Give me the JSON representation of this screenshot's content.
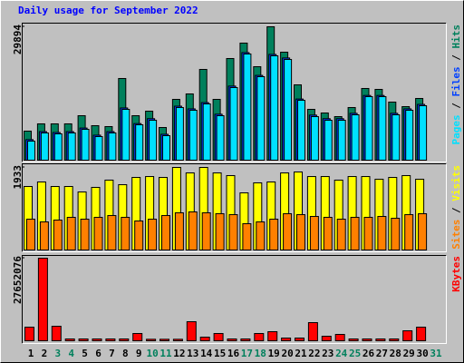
{
  "chart_data": [
    {
      "type": "bar",
      "title": "Daily usage for September 2022",
      "ylim": [
        0,
        29894
      ],
      "yticks": [
        29894
      ],
      "legend_separator": " / ",
      "series": [
        {
          "name": "Hits",
          "color": "#00805c",
          "values": [
            6508,
            8135,
            8135,
            8135,
            9965,
            7728,
            7524,
            18303,
            9965,
            10982,
            7321,
            13625,
            14845,
            20336,
            13625,
            22777,
            26233,
            20946,
            29894,
            24200,
            16879,
            11388,
            10575,
            9761,
            11795,
            16066,
            15862,
            13015,
            11998,
            13829,
            null
          ]
        },
        {
          "name": "Files",
          "color": "#0040ff",
          "values": [
            4600,
            6400,
            6200,
            6400,
            7200,
            5600,
            6400,
            11700,
            8200,
            9300,
            5800,
            12100,
            11500,
            12900,
            10300,
            16600,
            24100,
            19000,
            23700,
            22900,
            13700,
            10100,
            9300,
            9300,
            10500,
            14500,
            14500,
            10500,
            11500,
            12500,
            null
          ]
        },
        {
          "name": "Pages",
          "color": "#00e0ff",
          "values": [
            4271,
            6101,
            5898,
            6101,
            6914,
            5287,
            6101,
            11388,
            7931,
            8948,
            5491,
            11795,
            11185,
            12608,
            9965,
            16269,
            23793,
            18709,
            23386,
            22573,
            13422,
            9761,
            8948,
            8948,
            10168,
            14235,
            14235,
            10168,
            11185,
            12201,
            null
          ]
        }
      ]
    },
    {
      "type": "bar",
      "ylim": [
        0,
        1933
      ],
      "yticks": [
        1933
      ],
      "legend_separator": " / ",
      "series": [
        {
          "name": "Visits",
          "color": "#ffff00",
          "values": [
            1487,
            1593,
            1487,
            1487,
            1359,
            1466,
            1636,
            1529,
            1699,
            1720,
            1699,
            1933,
            1805,
            1933,
            1805,
            1742,
            1338,
            1572,
            1593,
            1805,
            1827,
            1720,
            1720,
            1636,
            1720,
            1720,
            1657,
            1699,
            1742,
            1657,
            null
          ]
        },
        {
          "name": "Sites",
          "color": "#ff8000",
          "values": [
            722,
            658,
            701,
            765,
            722,
            765,
            807,
            765,
            680,
            722,
            807,
            871,
            892,
            871,
            850,
            828,
            616,
            658,
            722,
            850,
            828,
            786,
            765,
            722,
            765,
            765,
            786,
            743,
            828,
            850,
            null
          ]
        }
      ]
    },
    {
      "type": "bar",
      "ylim": [
        0,
        27652076
      ],
      "yticks": [
        27652076
      ],
      "categories": [
        "1",
        "2",
        "3",
        "4",
        "5",
        "6",
        "7",
        "8",
        "9",
        "10",
        "11",
        "12",
        "13",
        "14",
        "15",
        "16",
        "17",
        "18",
        "19",
        "20",
        "21",
        "22",
        "23",
        "24",
        "25",
        "26",
        "27",
        "28",
        "29",
        "30",
        "31"
      ],
      "category_colors": [
        "#000000",
        "#000000",
        "#00805c",
        "#00805c",
        "#000000",
        "#000000",
        "#000000",
        "#000000",
        "#000000",
        "#00805c",
        "#00805c",
        "#000000",
        "#000000",
        "#000000",
        "#000000",
        "#000000",
        "#00805c",
        "#00805c",
        "#000000",
        "#000000",
        "#000000",
        "#000000",
        "#000000",
        "#00805c",
        "#00805c",
        "#000000",
        "#000000",
        "#000000",
        "#000000",
        "#000000",
        "#00805c"
      ],
      "series": [
        {
          "name": "KBytes",
          "color": "#ff0000",
          "values": [
            4558000,
            27652076,
            4862000,
            608000,
            608000,
            608000,
            608000,
            608000,
            2431000,
            500000,
            500000,
            500000,
            6381000,
            1215000,
            2431000,
            608000,
            608000,
            2431000,
            3039000,
            912000,
            912000,
            6077000,
            1519000,
            2127000,
            608000,
            608000,
            608000,
            608000,
            3343000,
            4558000,
            null
          ]
        }
      ]
    }
  ]
}
